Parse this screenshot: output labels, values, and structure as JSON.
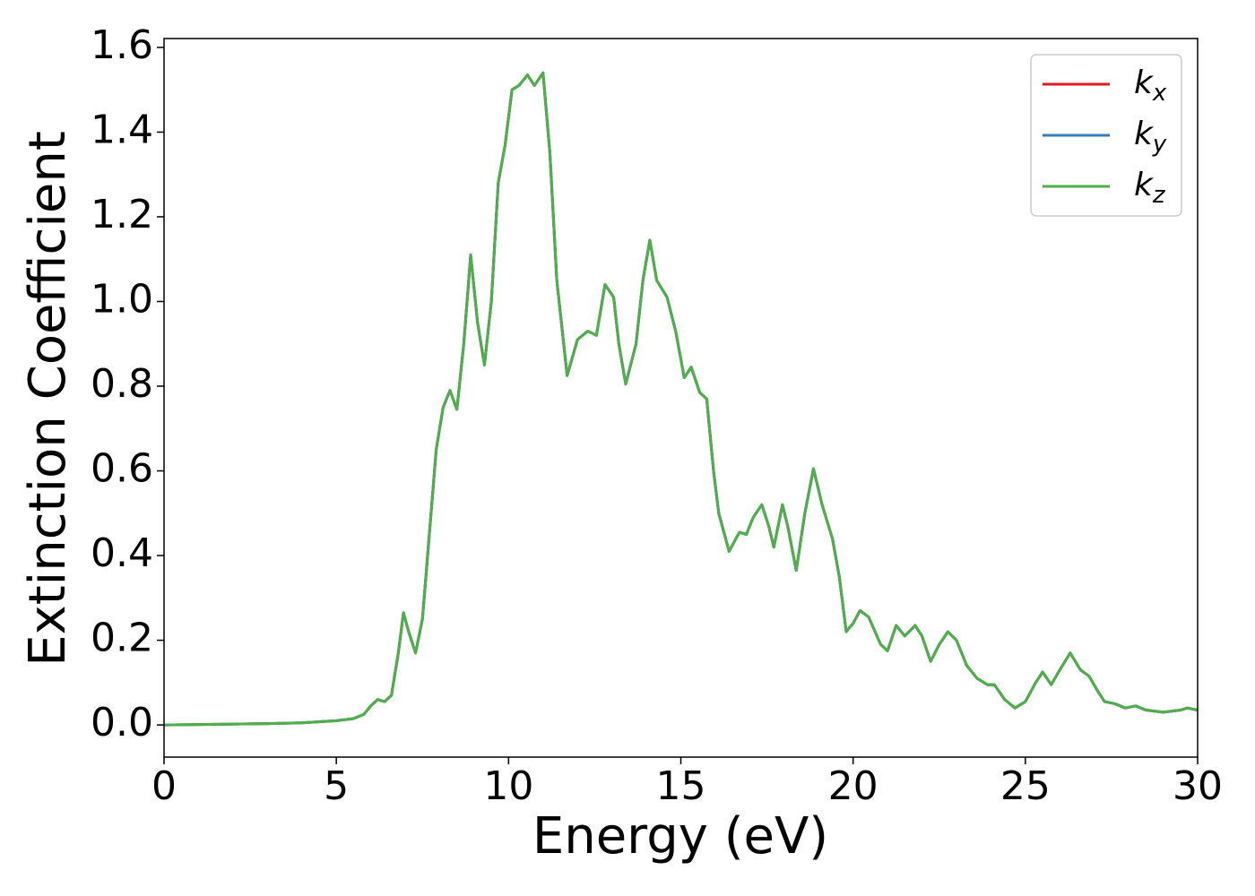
{
  "chart_data": {
    "type": "line",
    "xlabel": "Energy (eV)",
    "ylabel": "Extinction Coefficient",
    "xlim": [
      0,
      30
    ],
    "xticks": [
      0,
      5,
      10,
      15,
      20,
      25,
      30
    ],
    "ylim": [
      -0.076,
      1.621
    ],
    "yticks": [
      {
        "value": 0,
        "label": "0.0"
      },
      0.2,
      0.4,
      0.6,
      0.8,
      {
        "value": 1,
        "label": "1.0"
      },
      1.2,
      1.4,
      1.6
    ],
    "grid": false,
    "legend": "upper right",
    "x": [
      0,
      1,
      2,
      3,
      4,
      5,
      5.5,
      5.8,
      6.0,
      6.2,
      6.4,
      6.6,
      6.8,
      6.95,
      7.1,
      7.3,
      7.5,
      7.7,
      7.9,
      8.1,
      8.3,
      8.5,
      8.7,
      8.9,
      9.1,
      9.3,
      9.5,
      9.7,
      9.9,
      10.1,
      10.3,
      10.55,
      10.75,
      11.0,
      11.2,
      11.4,
      11.7,
      12.0,
      12.3,
      12.55,
      12.8,
      13.05,
      13.2,
      13.4,
      13.7,
      13.9,
      14.1,
      14.3,
      14.6,
      14.85,
      15.1,
      15.3,
      15.55,
      15.75,
      15.95,
      16.1,
      16.4,
      16.7,
      16.9,
      17.1,
      17.35,
      17.55,
      17.7,
      17.95,
      18.1,
      18.35,
      18.6,
      18.85,
      19.1,
      19.4,
      19.6,
      19.8,
      20.0,
      20.2,
      20.45,
      20.8,
      21.0,
      21.25,
      21.5,
      21.8,
      22.0,
      22.25,
      22.5,
      22.75,
      23.0,
      23.3,
      23.6,
      23.9,
      24.1,
      24.4,
      24.7,
      25.0,
      25.3,
      25.5,
      25.75,
      26.0,
      26.3,
      26.6,
      26.85,
      27.1,
      27.3,
      27.6,
      27.9,
      28.2,
      28.5,
      29.0,
      29.5,
      29.7,
      30
    ],
    "series": [
      {
        "name": "kx",
        "color": "#e41a1c",
        "values": [
          0,
          0.001,
          0.002,
          0.003,
          0.005,
          0.01,
          0.015,
          0.025,
          0.045,
          0.06,
          0.055,
          0.07,
          0.17,
          0.265,
          0.22,
          0.17,
          0.25,
          0.45,
          0.65,
          0.75,
          0.79,
          0.745,
          0.9,
          1.11,
          0.95,
          0.85,
          1.0,
          1.28,
          1.37,
          1.5,
          1.51,
          1.535,
          1.51,
          1.54,
          1.35,
          1.05,
          0.825,
          0.91,
          0.93,
          0.92,
          1.04,
          1.01,
          0.9,
          0.805,
          0.9,
          1.05,
          1.145,
          1.05,
          1.01,
          0.93,
          0.82,
          0.845,
          0.785,
          0.77,
          0.6,
          0.5,
          0.41,
          0.455,
          0.45,
          0.49,
          0.52,
          0.47,
          0.42,
          0.52,
          0.47,
          0.365,
          0.5,
          0.605,
          0.52,
          0.44,
          0.35,
          0.22,
          0.24,
          0.27,
          0.255,
          0.19,
          0.175,
          0.235,
          0.21,
          0.235,
          0.21,
          0.15,
          0.19,
          0.22,
          0.2,
          0.14,
          0.11,
          0.095,
          0.095,
          0.06,
          0.04,
          0.055,
          0.1,
          0.125,
          0.095,
          0.13,
          0.17,
          0.13,
          0.115,
          0.08,
          0.055,
          0.05,
          0.04,
          0.045,
          0.035,
          0.03,
          0.035,
          0.04,
          0.035
        ]
      },
      {
        "name": "ky",
        "color": "#377eb8",
        "values": [
          0,
          0.001,
          0.002,
          0.003,
          0.005,
          0.01,
          0.015,
          0.025,
          0.045,
          0.06,
          0.055,
          0.07,
          0.17,
          0.265,
          0.22,
          0.17,
          0.25,
          0.45,
          0.65,
          0.75,
          0.79,
          0.745,
          0.9,
          1.11,
          0.95,
          0.85,
          1.0,
          1.28,
          1.37,
          1.5,
          1.51,
          1.535,
          1.51,
          1.54,
          1.35,
          1.05,
          0.825,
          0.91,
          0.93,
          0.92,
          1.04,
          1.01,
          0.9,
          0.805,
          0.9,
          1.05,
          1.145,
          1.05,
          1.01,
          0.93,
          0.82,
          0.845,
          0.785,
          0.77,
          0.6,
          0.5,
          0.41,
          0.455,
          0.45,
          0.49,
          0.52,
          0.47,
          0.42,
          0.52,
          0.47,
          0.365,
          0.5,
          0.605,
          0.52,
          0.44,
          0.35,
          0.22,
          0.24,
          0.27,
          0.255,
          0.19,
          0.175,
          0.235,
          0.21,
          0.235,
          0.21,
          0.15,
          0.19,
          0.22,
          0.2,
          0.14,
          0.11,
          0.095,
          0.095,
          0.06,
          0.04,
          0.055,
          0.1,
          0.125,
          0.095,
          0.13,
          0.17,
          0.13,
          0.115,
          0.08,
          0.055,
          0.05,
          0.04,
          0.045,
          0.035,
          0.03,
          0.035,
          0.04,
          0.035
        ]
      },
      {
        "name": "kz",
        "color": "#4daf4a",
        "values": [
          0,
          0.001,
          0.002,
          0.003,
          0.005,
          0.01,
          0.015,
          0.025,
          0.045,
          0.06,
          0.055,
          0.07,
          0.17,
          0.265,
          0.22,
          0.17,
          0.25,
          0.45,
          0.65,
          0.75,
          0.79,
          0.745,
          0.9,
          1.11,
          0.95,
          0.85,
          1.0,
          1.28,
          1.37,
          1.5,
          1.51,
          1.535,
          1.51,
          1.54,
          1.35,
          1.05,
          0.825,
          0.91,
          0.93,
          0.92,
          1.04,
          1.01,
          0.9,
          0.805,
          0.9,
          1.05,
          1.145,
          1.05,
          1.01,
          0.93,
          0.82,
          0.845,
          0.785,
          0.77,
          0.6,
          0.5,
          0.41,
          0.455,
          0.45,
          0.49,
          0.52,
          0.47,
          0.42,
          0.52,
          0.47,
          0.365,
          0.5,
          0.605,
          0.52,
          0.44,
          0.35,
          0.22,
          0.24,
          0.27,
          0.255,
          0.19,
          0.175,
          0.235,
          0.21,
          0.235,
          0.21,
          0.15,
          0.19,
          0.22,
          0.2,
          0.14,
          0.11,
          0.095,
          0.095,
          0.06,
          0.04,
          0.055,
          0.1,
          0.125,
          0.095,
          0.13,
          0.17,
          0.13,
          0.115,
          0.08,
          0.055,
          0.05,
          0.04,
          0.045,
          0.035,
          0.03,
          0.035,
          0.04,
          0.035
        ]
      }
    ]
  }
}
